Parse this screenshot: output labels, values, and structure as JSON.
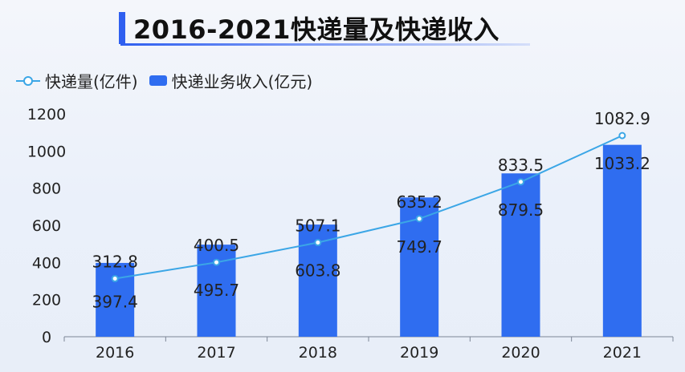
{
  "title": "2016-2021快递量及快递收入",
  "legend": {
    "line_label": "快递量(亿件)",
    "bar_label": "快递业务收入(亿元)"
  },
  "colors": {
    "bar": "#2f6df0",
    "line": "#3ba6e6",
    "accent": "#2f5ff0"
  },
  "chart_data": {
    "type": "bar",
    "title": "2016-2021快递量及快递收入",
    "categories": [
      "2016",
      "2017",
      "2018",
      "2019",
      "2020",
      "2021"
    ],
    "ylim": [
      0,
      1200
    ],
    "yticks": [
      "0",
      "200",
      "400",
      "600",
      "800",
      "1000",
      "1200"
    ],
    "grid": false,
    "legend_position": "top-left",
    "series": [
      {
        "name": "快递业务收入(亿元)",
        "type": "bar",
        "values": [
          397.4,
          495.7,
          603.8,
          749.7,
          879.5,
          1033.2
        ],
        "labels": [
          "397.4",
          "495.7",
          "603.8",
          "749.7",
          "879.5",
          "1033.2"
        ]
      },
      {
        "name": "快递量(亿件)",
        "type": "line",
        "values": [
          312.8,
          400.5,
          507.1,
          635.2,
          833.5,
          1082.9
        ],
        "labels": [
          "312.8",
          "400.5",
          "507.1",
          "635.2",
          "833.5",
          "1082.9"
        ]
      }
    ]
  }
}
